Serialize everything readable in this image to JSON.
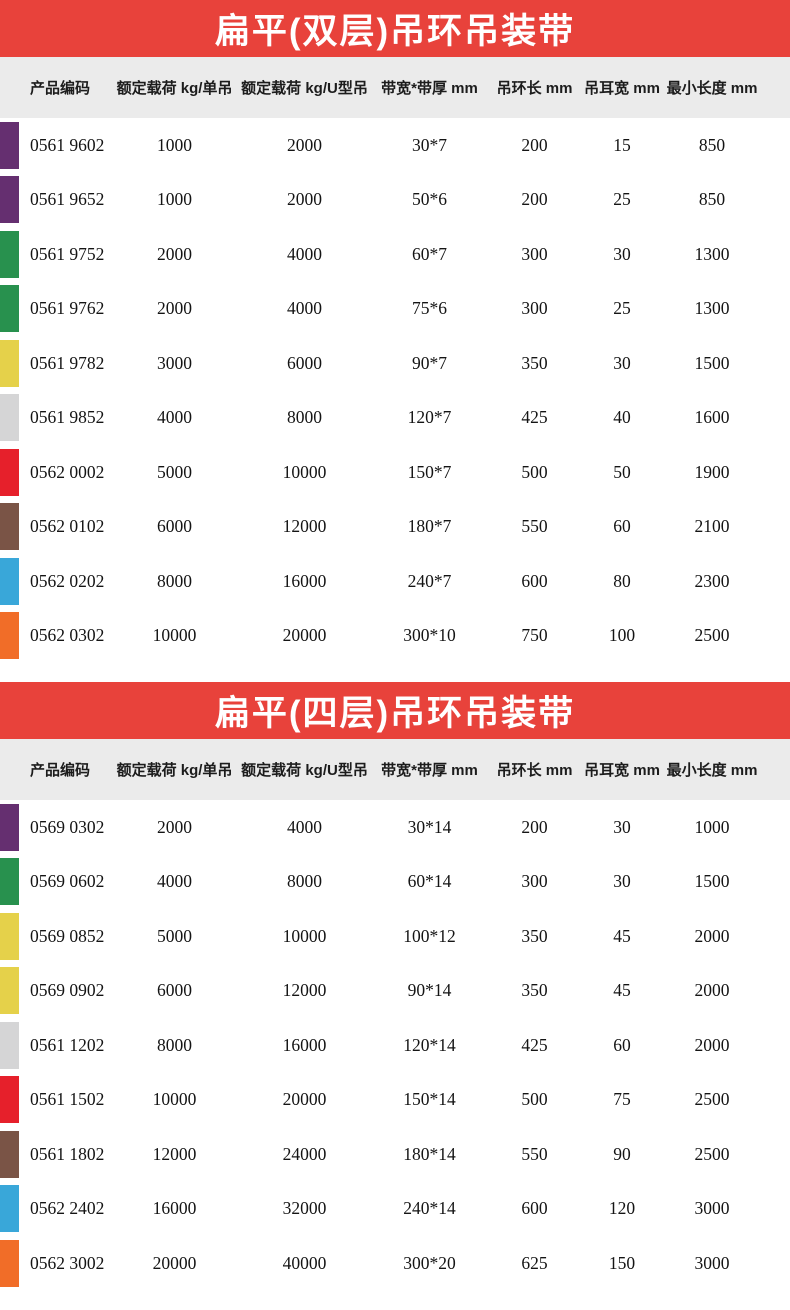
{
  "page": {
    "background": "#ffffff"
  },
  "colors": {
    "banner_red": "#e8423b",
    "banner_text": "#ffffff",
    "header_gray": "#ebebeb",
    "text": "#1c1c1c",
    "swatch": {
      "purple": "#652f70",
      "green": "#28914e",
      "yellow": "#e5d14a",
      "gray": "#d5d5d6",
      "red": "#e6202b",
      "brown": "#7a5446",
      "blue": "#39a7d9",
      "orange": "#f16d28"
    }
  },
  "tables": [
    {
      "id": "double-layer",
      "title": "扁平(双层)吊环吊装带",
      "columns": [
        "产品编码",
        "额定载荷 kg/单吊",
        "额定载荷 kg/U型吊",
        "带宽*带厚 mm",
        "吊环长 mm",
        "吊耳宽 mm",
        "最小长度 mm"
      ],
      "rows": [
        {
          "swatch": "purple",
          "code": "0561 9602",
          "values": [
            "1000",
            "2000",
            "30*7",
            "200",
            "15",
            "850"
          ]
        },
        {
          "swatch": "purple",
          "code": "0561 9652",
          "values": [
            "1000",
            "2000",
            "50*6",
            "200",
            "25",
            "850"
          ]
        },
        {
          "swatch": "green",
          "code": "0561 9752",
          "values": [
            "2000",
            "4000",
            "60*7",
            "300",
            "30",
            "1300"
          ]
        },
        {
          "swatch": "green",
          "code": "0561 9762",
          "values": [
            "2000",
            "4000",
            "75*6",
            "300",
            "25",
            "1300"
          ]
        },
        {
          "swatch": "yellow",
          "code": "0561 9782",
          "values": [
            "3000",
            "6000",
            "90*7",
            "350",
            "30",
            "1500"
          ]
        },
        {
          "swatch": "gray",
          "code": "0561 9852",
          "values": [
            "4000",
            "8000",
            "120*7",
            "425",
            "40",
            "1600"
          ]
        },
        {
          "swatch": "red",
          "code": "0562 0002",
          "values": [
            "5000",
            "10000",
            "150*7",
            "500",
            "50",
            "1900"
          ]
        },
        {
          "swatch": "brown",
          "code": "0562 0102",
          "values": [
            "6000",
            "12000",
            "180*7",
            "550",
            "60",
            "2100"
          ]
        },
        {
          "swatch": "blue",
          "code": "0562 0202",
          "values": [
            "8000",
            "16000",
            "240*7",
            "600",
            "80",
            "2300"
          ]
        },
        {
          "swatch": "orange",
          "code": "0562 0302",
          "values": [
            "10000",
            "20000",
            "300*10",
            "750",
            "100",
            "2500"
          ]
        }
      ]
    },
    {
      "id": "four-layer",
      "title": "扁平(四层)吊环吊装带",
      "columns": [
        "产品编码",
        "额定载荷 kg/单吊",
        "额定载荷 kg/U型吊",
        "带宽*带厚 mm",
        "吊环长 mm",
        "吊耳宽 mm",
        "最小长度 mm"
      ],
      "rows": [
        {
          "swatch": "purple",
          "code": "0569 0302",
          "values": [
            "2000",
            "4000",
            "30*14",
            "200",
            "30",
            "1000"
          ]
        },
        {
          "swatch": "green",
          "code": "0569 0602",
          "values": [
            "4000",
            "8000",
            "60*14",
            "300",
            "30",
            "1500"
          ]
        },
        {
          "swatch": "yellow",
          "code": "0569 0852",
          "values": [
            "5000",
            "10000",
            "100*12",
            "350",
            "45",
            "2000"
          ]
        },
        {
          "swatch": "yellow",
          "code": "0569 0902",
          "values": [
            "6000",
            "12000",
            "90*14",
            "350",
            "45",
            "2000"
          ]
        },
        {
          "swatch": "gray",
          "code": "0561 1202",
          "values": [
            "8000",
            "16000",
            "120*14",
            "425",
            "60",
            "2000"
          ]
        },
        {
          "swatch": "red",
          "code": "0561 1502",
          "values": [
            "10000",
            "20000",
            "150*14",
            "500",
            "75",
            "2500"
          ]
        },
        {
          "swatch": "brown",
          "code": "0561 1802",
          "values": [
            "12000",
            "24000",
            "180*14",
            "550",
            "90",
            "2500"
          ]
        },
        {
          "swatch": "blue",
          "code": "0562 2402",
          "values": [
            "16000",
            "32000",
            "240*14",
            "600",
            "120",
            "3000"
          ]
        },
        {
          "swatch": "orange",
          "code": "0562 3002",
          "values": [
            "20000",
            "40000",
            "300*20",
            "625",
            "150",
            "3000"
          ]
        }
      ]
    }
  ]
}
